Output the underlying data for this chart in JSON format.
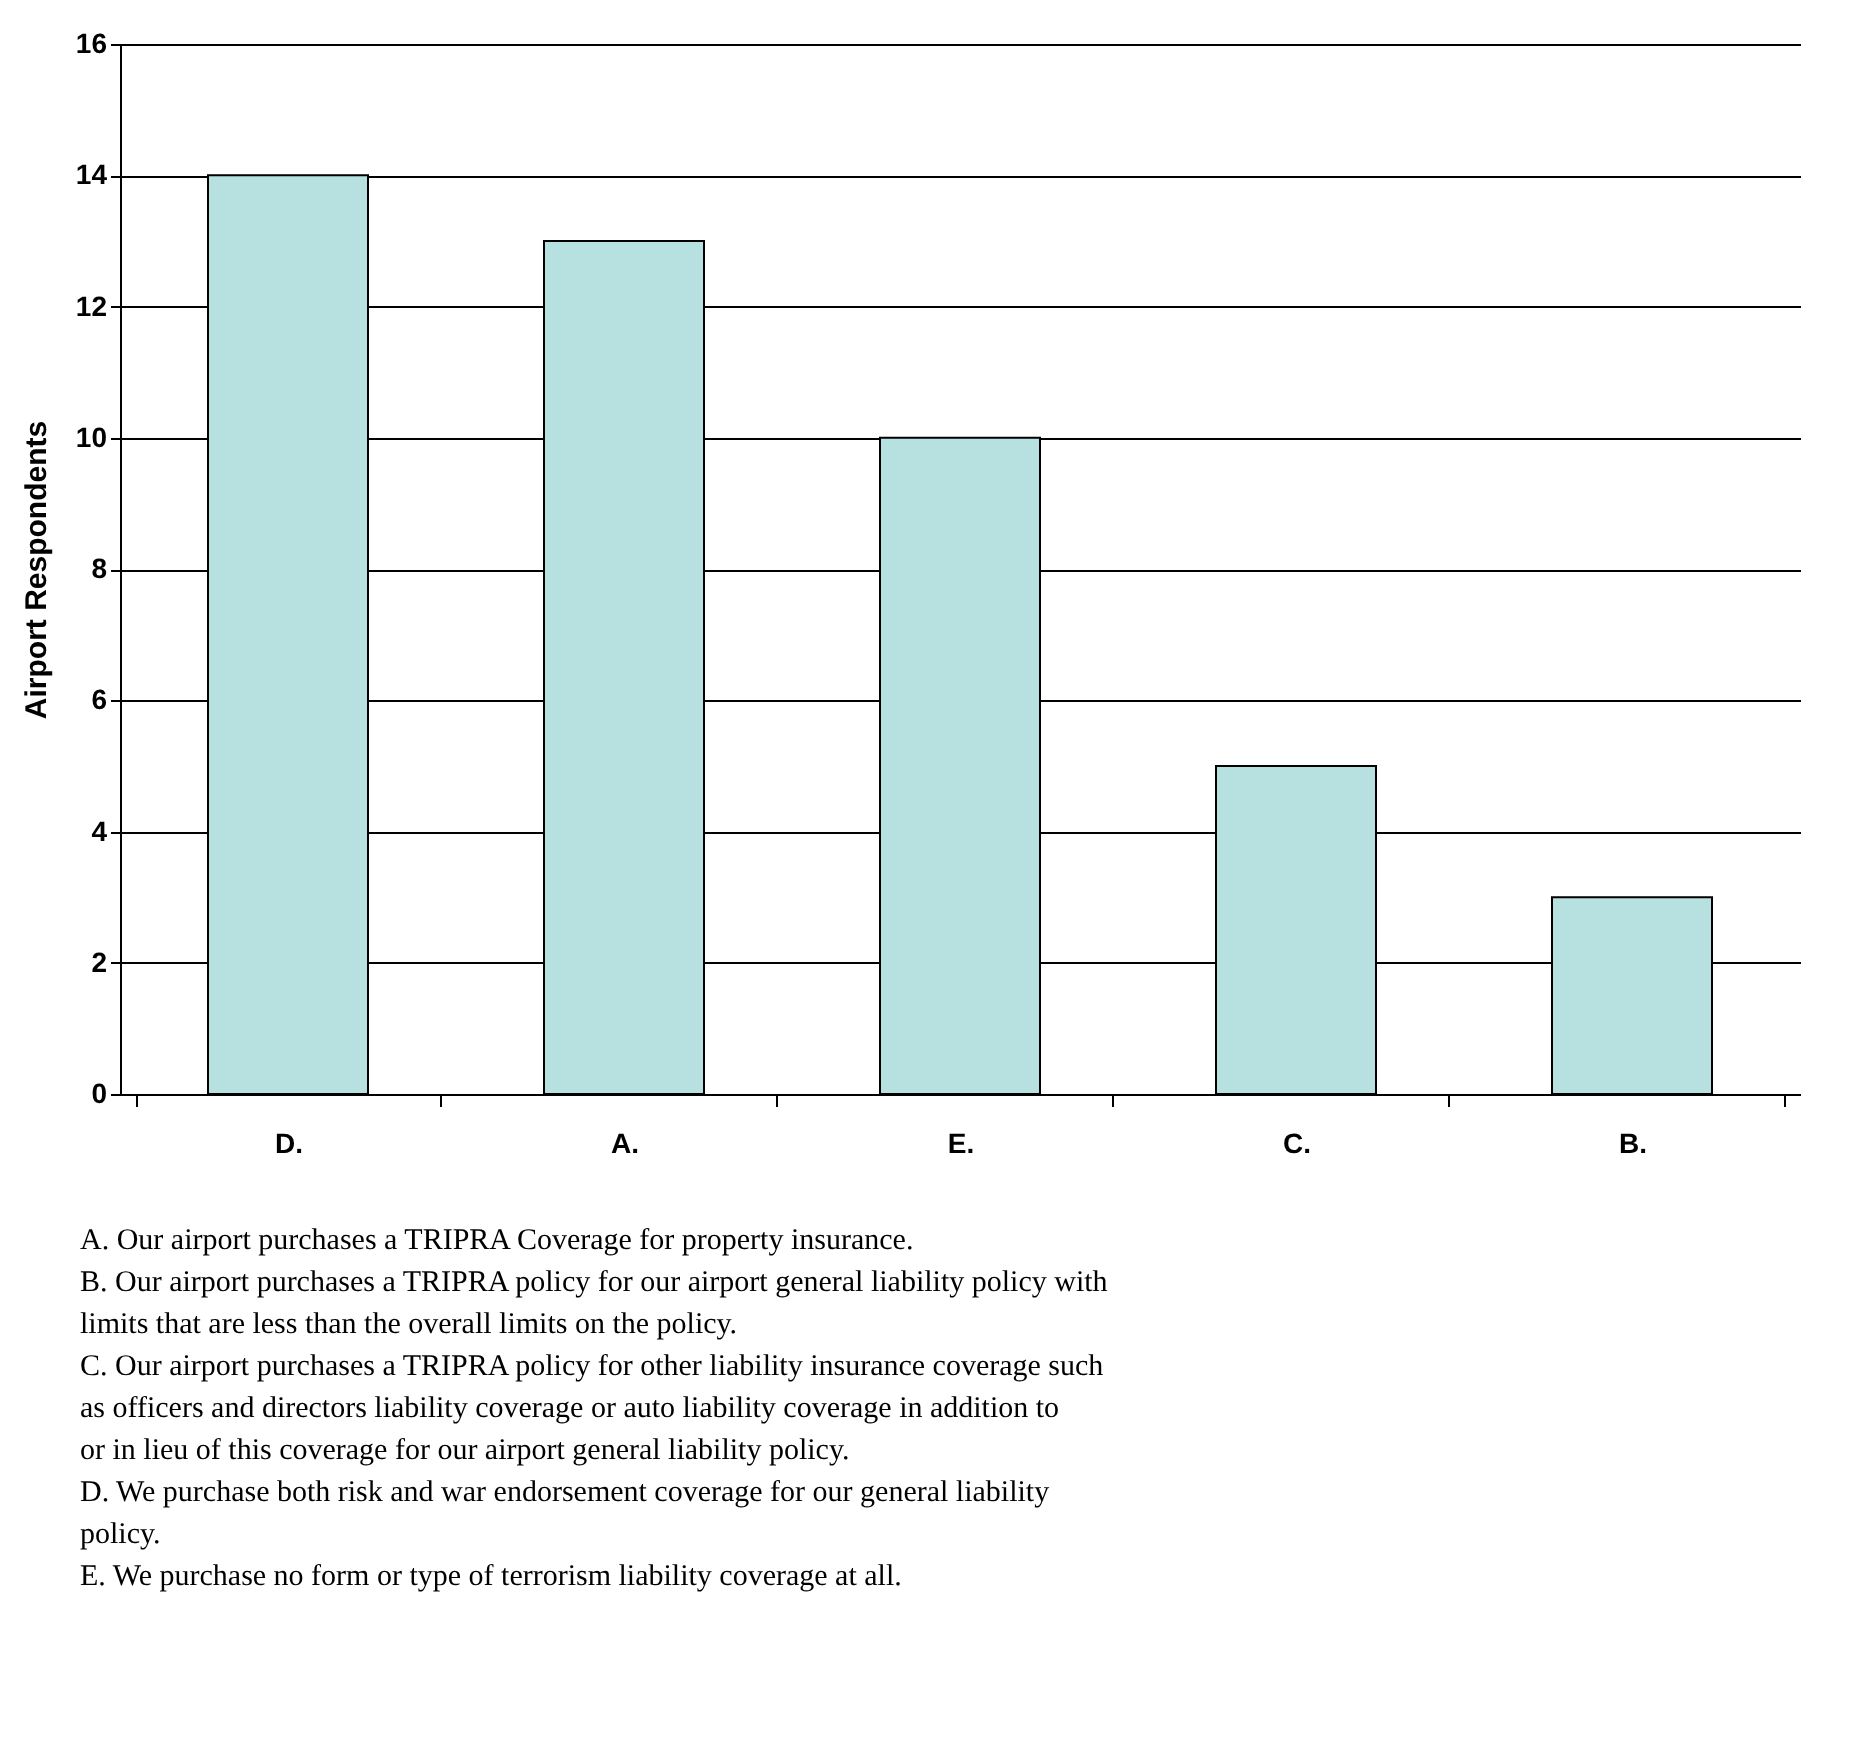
{
  "chart_data": {
    "type": "bar",
    "ylabel": "Airport Respondents",
    "categories": [
      "D.",
      "A.",
      "E.",
      "C.",
      "B."
    ],
    "values": [
      14,
      13,
      10,
      5,
      3
    ],
    "color": "#b7e0e1",
    "ylim": [
      0,
      16
    ],
    "yticks": [
      0,
      2,
      4,
      6,
      8,
      10,
      12,
      14,
      16
    ],
    "grid": "y",
    "annotations": [
      "A. Our airport purchases a TRIPRA Coverage for property insurance.",
      "B. Our airport purchases a TRIPRA policy for our airport general liability policy with limits that are less than the overall limits on the policy.",
      "C. Our airport purchases a TRIPRA policy for other liability insurance coverage such as officers and directors liability coverage or auto liability coverage in addition to or in lieu of this coverage for our airport general liability policy.",
      "D. We purchase both risk and war endorsement coverage for our general liability policy.",
      "E. We purchase no form or type of terrorism liability coverage at all."
    ]
  }
}
